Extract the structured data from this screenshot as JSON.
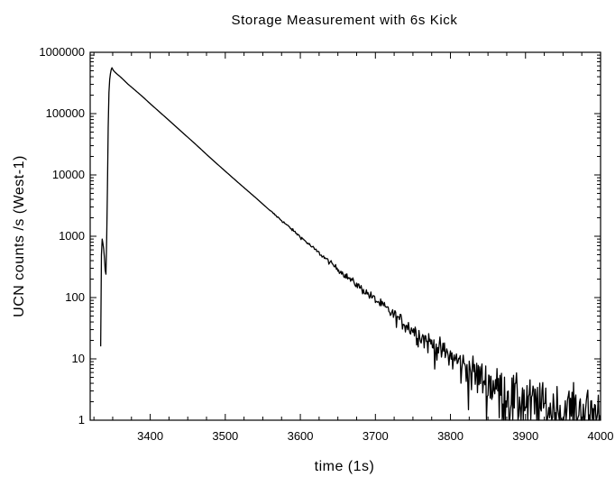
{
  "chart_data": {
    "type": "line",
    "title": "Storage Measurement with 6s Kick",
    "xlabel": "time (1s)",
    "ylabel": "UCN counts /s   (West-1)",
    "xlim": [
      3320,
      4000
    ],
    "ylim": [
      1,
      1000000
    ],
    "yscale": "log",
    "grid": false,
    "legend": "none",
    "x_ticks": [
      3400,
      3500,
      3600,
      3700,
      3800,
      3900,
      4000
    ],
    "x_tick_labels": [
      "3400",
      "3500",
      "3600",
      "3700",
      "3800",
      "3900",
      "4000"
    ],
    "y_ticks": [
      1,
      10,
      100,
      1000,
      10000,
      100000,
      1000000
    ],
    "y_tick_labels": [
      "1",
      "10",
      "100",
      "1000",
      "10000",
      "100000",
      "1000000"
    ],
    "series": [
      {
        "color": "#000000",
        "points": [
          [
            3334,
            16
          ],
          [
            3335,
            500
          ],
          [
            3336,
            900
          ],
          [
            3337,
            760
          ],
          [
            3338,
            620
          ],
          [
            3339,
            440
          ],
          [
            3340,
            280
          ],
          [
            3341,
            240
          ],
          [
            3342,
            900
          ],
          [
            3343,
            6000
          ],
          [
            3344,
            60000
          ],
          [
            3345,
            220000
          ],
          [
            3346,
            360000
          ],
          [
            3347,
            450000
          ],
          [
            3348,
            520000
          ],
          [
            3349,
            560000
          ],
          [
            3350,
            530000
          ],
          [
            3351,
            505000
          ],
          [
            3353,
            475000
          ],
          [
            3356,
            440000
          ],
          [
            3360,
            400000
          ],
          [
            3365,
            350000
          ],
          [
            3370,
            305000
          ],
          [
            3380,
            240000
          ],
          [
            3390,
            188000
          ],
          [
            3400,
            145000
          ],
          [
            3420,
            88000
          ],
          [
            3440,
            53000
          ],
          [
            3460,
            32000
          ],
          [
            3480,
            19000
          ],
          [
            3500,
            11500
          ],
          [
            3520,
            7000
          ],
          [
            3540,
            4300
          ],
          [
            3560,
            2600
          ],
          [
            3580,
            1600
          ],
          [
            3600,
            980
          ],
          [
            3620,
            600
          ],
          [
            3640,
            370
          ],
          [
            3660,
            230
          ],
          [
            3680,
            145
          ],
          [
            3700,
            92
          ],
          [
            3720,
            58
          ],
          [
            3740,
            37
          ],
          [
            3760,
            24
          ],
          [
            3780,
            16
          ],
          [
            3800,
            11
          ],
          [
            3820,
            7.5
          ],
          [
            3840,
            5.2
          ],
          [
            3860,
            3.7
          ],
          [
            3880,
            2.7
          ],
          [
            3900,
            2.1
          ],
          [
            3920,
            1.7
          ],
          [
            3940,
            1.5
          ],
          [
            3960,
            1.4
          ],
          [
            3980,
            1.3
          ],
          [
            4000,
            1.2
          ]
        ]
      }
    ]
  }
}
